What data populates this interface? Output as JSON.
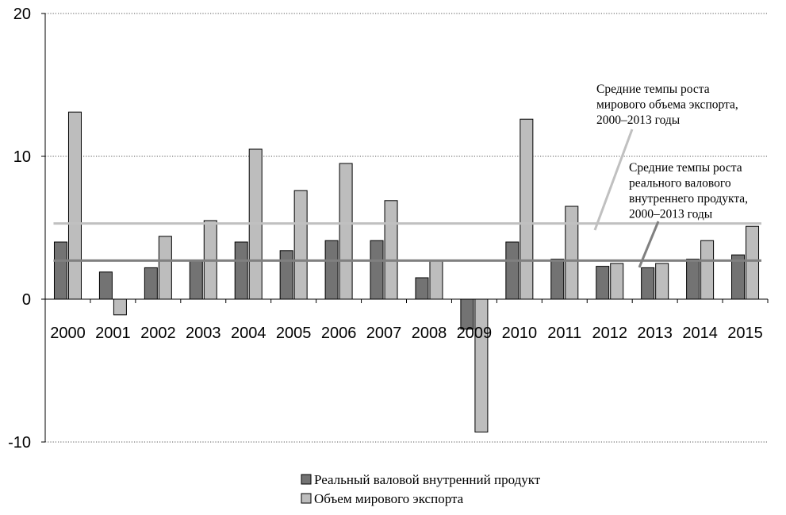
{
  "chart_data": {
    "type": "bar",
    "categories": [
      "2000",
      "2001",
      "2002",
      "2003",
      "2004",
      "2005",
      "2006",
      "2007",
      "2008",
      "2009",
      "2010",
      "2011",
      "2012",
      "2013",
      "2014",
      "2015"
    ],
    "series": [
      {
        "name": "Реальный валовой внутренний продукт",
        "color": "#737373",
        "values": [
          4.0,
          1.9,
          2.2,
          2.7,
          4.0,
          3.4,
          4.1,
          4.1,
          1.5,
          -2.1,
          4.0,
          2.8,
          2.3,
          2.2,
          2.8,
          3.1
        ]
      },
      {
        "name": "Объем мирового экспорта",
        "color": "#bdbdbd",
        "values": [
          13.1,
          -1.1,
          4.4,
          5.5,
          10.5,
          7.6,
          9.5,
          6.9,
          2.7,
          -9.3,
          12.6,
          6.5,
          2.5,
          2.5,
          4.1,
          5.1
        ]
      }
    ],
    "reference_lines": [
      {
        "name": "export_avg",
        "value": 5.3,
        "color": "#c0c0c0"
      },
      {
        "name": "gdp_avg",
        "value": 2.7,
        "color": "#808080"
      }
    ],
    "annotations": [
      {
        "target": "export_avg",
        "lines": [
          "Средние темпы роста",
          "мирового объема экспорта,",
          "2000–2013 годы"
        ]
      },
      {
        "target": "gdp_avg",
        "lines": [
          "Средние темпы роста",
          "реального валового",
          "внутреннего продукта,",
          "2000–2013 годы"
        ]
      }
    ],
    "y_ticks": [
      20,
      10,
      0,
      -10
    ],
    "ylim": [
      -10,
      20
    ],
    "grid": "dotted horizontal",
    "legend_position": "bottom",
    "title": "",
    "xlabel": "",
    "ylabel": ""
  }
}
